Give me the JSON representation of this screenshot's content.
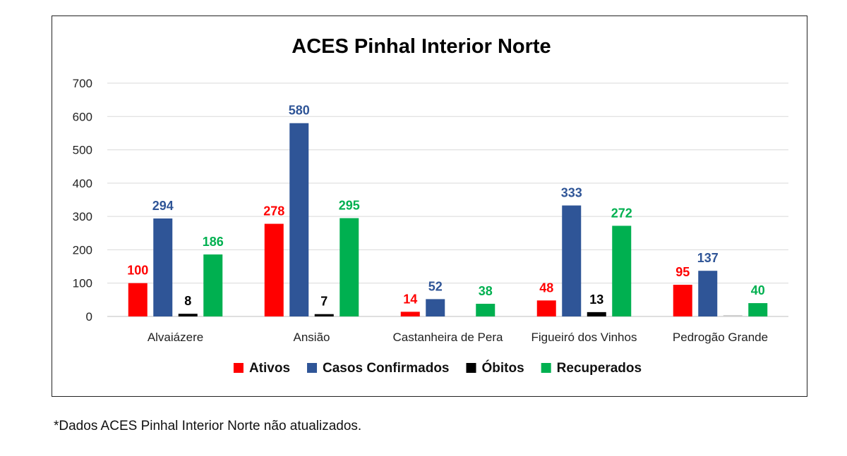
{
  "footnote": "*Dados ACES Pinhal Interior Norte não atualizados.",
  "chart_data": {
    "type": "bar",
    "title": "ACES Pinhal Interior Norte",
    "xlabel": "",
    "ylabel": "",
    "ylim": [
      0,
      700
    ],
    "yticks": [
      0,
      100,
      200,
      300,
      400,
      500,
      600,
      700
    ],
    "grid": true,
    "legend_position": "bottom",
    "categories": [
      "Alvaiázere",
      "Ansião",
      "Castanheira de Pera",
      "Figueiró dos Vinhos",
      "Pedrogão Grande"
    ],
    "series": [
      {
        "name": "Ativos",
        "color": "#ff0000",
        "values": [
          100,
          278,
          14,
          48,
          95
        ],
        "labels": [
          "100",
          "278",
          "14",
          "48",
          "95"
        ]
      },
      {
        "name": "Casos Confirmados",
        "color": "#2f5597",
        "values": [
          294,
          580,
          52,
          333,
          137
        ],
        "labels": [
          "294",
          "580",
          "52",
          "333",
          "137"
        ]
      },
      {
        "name": "Óbitos",
        "color": "#000000",
        "values": [
          8,
          7,
          0,
          13,
          1
        ],
        "labels": [
          "8",
          "7",
          "",
          "13",
          ""
        ]
      },
      {
        "name": "Recuperados",
        "color": "#00b050",
        "values": [
          186,
          295,
          38,
          272,
          40
        ],
        "labels": [
          "186",
          "295",
          "38",
          "272",
          "40"
        ]
      }
    ]
  }
}
